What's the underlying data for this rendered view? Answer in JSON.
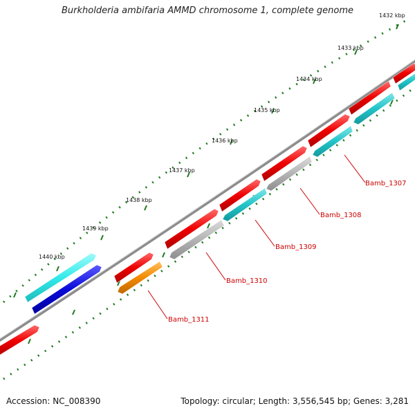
{
  "title": "Burkholderia ambifaria AMMD chromosome 1, complete genome",
  "footer": {
    "accession": "Accession: NC_008390",
    "summary": "Topology: circular; Length: 3,556,545 bp; Genes: 3,281"
  },
  "colors": {
    "backbone": "#8c8c8c",
    "tick": "#1f7a1f",
    "label": "#cc0000",
    "gene_red": "#ee0000",
    "gene_gray": "#b4b4b4",
    "gene_cyan": "#22c4c8",
    "gene_light_cyan": "#33eaea",
    "gene_blue": "#0a0ad8",
    "gene_orange": "#f28a00"
  },
  "scale_labels": [
    "1432 kbp",
    "1433 kbp",
    "1434 kbp",
    "1435 kbp",
    "1436 kbp",
    "1437 kbp",
    "1438 kbp",
    "1439 kbp",
    "1440 kbp"
  ],
  "gene_labels": [
    "Bamb_1307",
    "Bamb_1308",
    "Bamb_1309",
    "Bamb_1310",
    "Bamb_1311"
  ]
}
